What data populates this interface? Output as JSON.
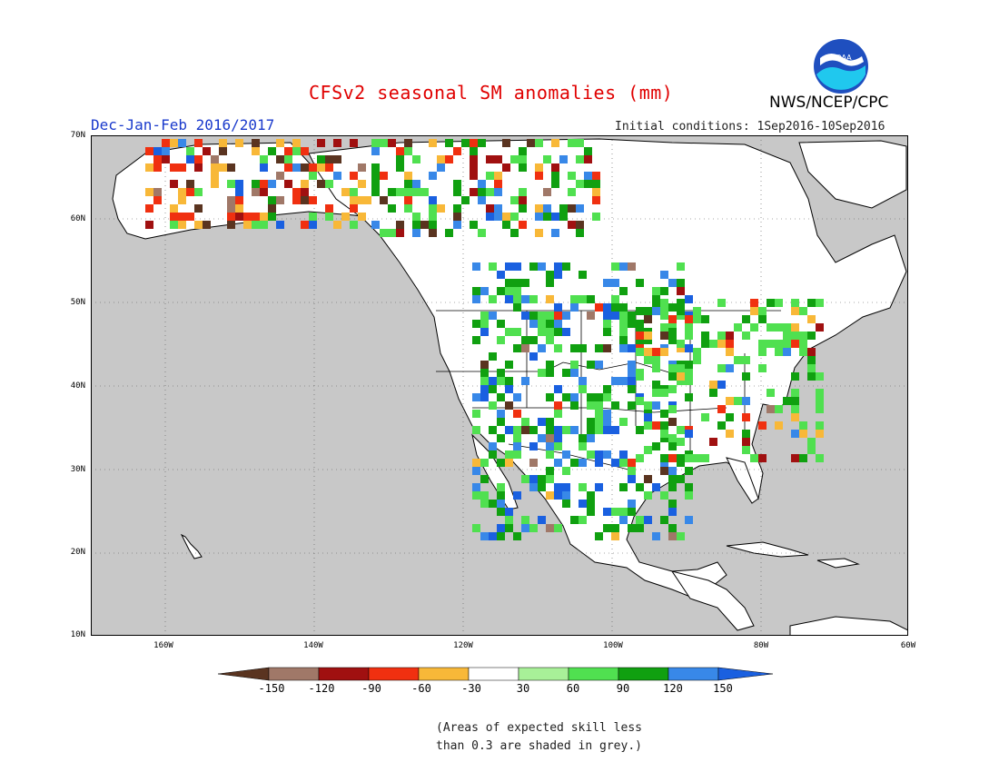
{
  "header": {
    "title": "CFSv2 seasonal SM anomalies (mm)",
    "season": "Dec-Jan-Feb 2016/2017",
    "initial_conditions": "Initial conditions: 1Sep2016-10Sep2016",
    "agency": "NWS/NCEP/CPC",
    "logo_text": "NOAA"
  },
  "map": {
    "lat_labels": [
      "70N",
      "60N",
      "50N",
      "40N",
      "30N",
      "20N",
      "10N"
    ],
    "lon_labels": [
      "160W",
      "140W",
      "120W",
      "100W",
      "80W",
      "60W"
    ],
    "ocean_color": "#c8c8c8",
    "land_color": "#ffffff"
  },
  "colorbar": {
    "labels": [
      "-150",
      "-120",
      "-90",
      "-60",
      "-30",
      "30",
      "60",
      "90",
      "120",
      "150"
    ],
    "colors": [
      "#5a3420",
      "#a07868",
      "#a01010",
      "#f03010",
      "#f8b838",
      "#ffffff",
      "#a8f098",
      "#50e050",
      "#10a010",
      "#3888e8",
      "#1a60e0"
    ]
  },
  "note": {
    "line1": "(Areas of expected skill less",
    "line2": "than 0.3 are shaded in grey.)"
  }
}
